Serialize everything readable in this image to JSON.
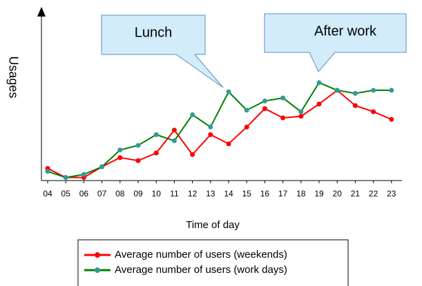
{
  "chart_data": {
    "type": "line",
    "x_label": "Time of day",
    "y_label": "Usages",
    "categories": [
      "04",
      "05",
      "06",
      "07",
      "08",
      "09",
      "10",
      "11",
      "12",
      "13",
      "14",
      "15",
      "16",
      "17",
      "18",
      "19",
      "20",
      "21",
      "22",
      "23"
    ],
    "series": [
      {
        "name": "Average number of users (weekends)",
        "color": "#ff0000",
        "values": [
          8,
          2,
          2,
          9,
          15,
          13,
          18,
          33,
          17,
          30,
          24,
          35,
          47,
          41,
          42,
          50,
          59,
          49,
          45,
          40
        ]
      },
      {
        "name": "Average number of users (work days)",
        "color": "#008000",
        "marker_color": "#339999",
        "values": [
          6,
          2,
          4,
          9,
          20,
          23,
          30,
          26,
          43,
          35,
          58,
          46,
          52,
          54,
          45,
          64,
          59,
          57,
          59,
          59
        ]
      }
    ],
    "ylim": [
      0,
      100
    ],
    "annotations": [
      {
        "text": "Lunch"
      },
      {
        "text": "After work"
      }
    ]
  }
}
